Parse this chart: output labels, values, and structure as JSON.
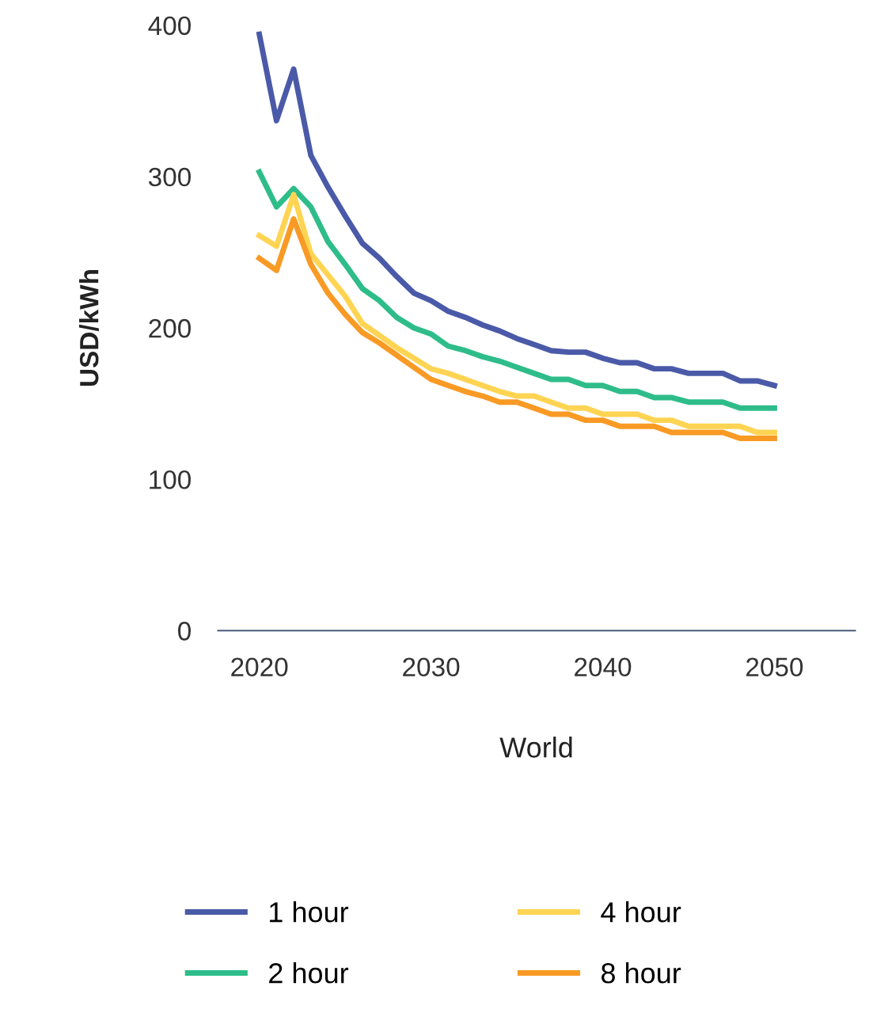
{
  "chart_data": {
    "type": "line",
    "xlabel": "World",
    "ylabel": "USD/kWh",
    "x": [
      2020,
      2021,
      2022,
      2023,
      2024,
      2025,
      2026,
      2027,
      2028,
      2029,
      2030,
      2031,
      2032,
      2033,
      2034,
      2035,
      2036,
      2037,
      2038,
      2039,
      2040,
      2041,
      2042,
      2043,
      2044,
      2045,
      2046,
      2047,
      2048,
      2049,
      2050
    ],
    "series": [
      {
        "name": "1 hour",
        "color": "#4a5aa8",
        "values": [
          394,
          337,
          371,
          314,
          293,
          274,
          256,
          246,
          234,
          223,
          218,
          211,
          207,
          202,
          198,
          193,
          189,
          185,
          184,
          184,
          180,
          177,
          177,
          173,
          173,
          170,
          170,
          170,
          165,
          165,
          162
        ]
      },
      {
        "name": "2 hour",
        "color": "#2ebd8a",
        "values": [
          303,
          280,
          292,
          280,
          257,
          242,
          226,
          218,
          207,
          200,
          196,
          188,
          185,
          181,
          178,
          174,
          170,
          166,
          166,
          162,
          162,
          158,
          158,
          154,
          154,
          151,
          151,
          151,
          147,
          147,
          147
        ]
      },
      {
        "name": "4 hour",
        "color": "#ffd452",
        "values": [
          261,
          254,
          288,
          249,
          235,
          221,
          203,
          195,
          187,
          180,
          173,
          170,
          166,
          162,
          158,
          155,
          155,
          151,
          147,
          147,
          143,
          143,
          143,
          139,
          139,
          135,
          135,
          135,
          135,
          131,
          131
        ]
      },
      {
        "name": "8 hour",
        "color": "#f99a24",
        "values": [
          246,
          238,
          272,
          242,
          223,
          209,
          197,
          190,
          182,
          174,
          166,
          162,
          158,
          155,
          151,
          151,
          147,
          143,
          143,
          139,
          139,
          135,
          135,
          135,
          131,
          131,
          131,
          131,
          127,
          127,
          127
        ]
      }
    ],
    "xlim": [
      2017.6,
      2054.7
    ],
    "ylim": [
      0,
      400
    ],
    "xticks": [
      2020,
      2030,
      2040,
      2050
    ],
    "yticks": [
      0,
      100,
      200,
      300,
      400
    ],
    "grid": false,
    "legend": "bottom",
    "marker": "none",
    "line_style": "solid"
  }
}
